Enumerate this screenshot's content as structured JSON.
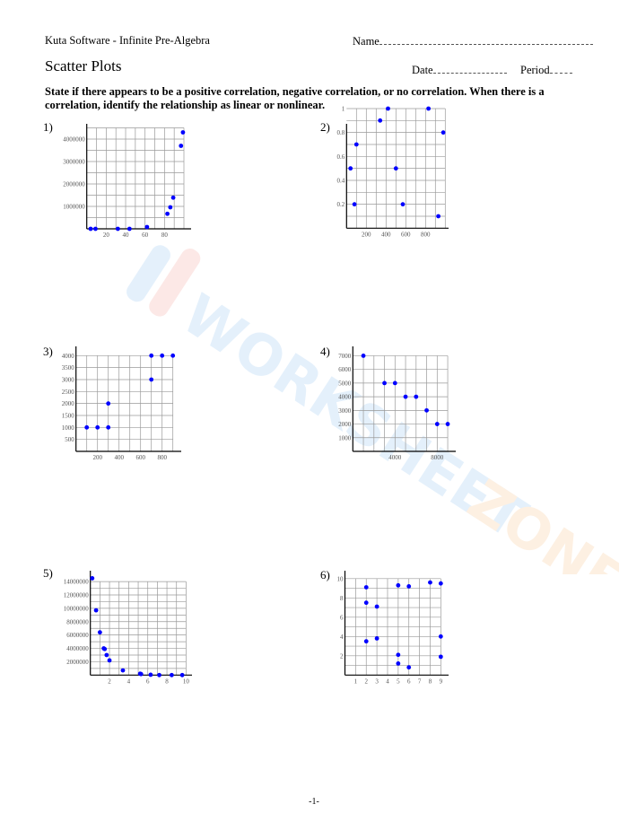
{
  "header": {
    "publisher": "Kuta Software - Infinite Pre-Algebra",
    "name_label": "Name",
    "title": "Scatter Plots",
    "date_label": "Date",
    "period_label": "Period"
  },
  "instructions": "State if there appears to be a positive correlation, negative correlation, or no correlation.  When there is a correlation, identify the relationship as linear or nonlinear.",
  "watermark": "WORKSHEETZONE",
  "footer": "-1-",
  "colors": {
    "points": "#0000ff",
    "grid": "#9a9a9a",
    "axis": "#000000",
    "tick_text": "#555555"
  },
  "chart_data": [
    {
      "label": "1)",
      "type": "scatter",
      "grid": true,
      "xlim": [
        0,
        100
      ],
      "ylim": [
        0,
        4500000
      ],
      "xticks": [
        "20",
        "40",
        "60",
        "80"
      ],
      "xtick_values": [
        20,
        40,
        60,
        80
      ],
      "yticks": [
        "1000000",
        "2000000",
        "3000000",
        "4000000"
      ],
      "ytick_values": [
        1000000,
        2000000,
        3000000,
        4000000
      ],
      "xgrid_step": 10,
      "ygrid_step": 500000,
      "points": [
        [
          4,
          0
        ],
        [
          9,
          0
        ],
        [
          32,
          0
        ],
        [
          44,
          0
        ],
        [
          62,
          80000
        ],
        [
          83,
          670000
        ],
        [
          86,
          960000
        ],
        [
          89,
          1390000
        ],
        [
          97,
          3700000
        ],
        [
          99,
          4300000
        ]
      ]
    },
    {
      "label": "2)",
      "type": "scatter",
      "grid": true,
      "xlim": [
        0,
        1000
      ],
      "ylim": [
        0,
        1
      ],
      "xticks": [
        "200",
        "400",
        "600",
        "800"
      ],
      "xtick_values": [
        200,
        400,
        600,
        800
      ],
      "yticks": [
        "0.2",
        "0.4",
        "0.6",
        "0.8",
        "1"
      ],
      "ytick_values": [
        0.2,
        0.4,
        0.6,
        0.8,
        1
      ],
      "xgrid_step": 100,
      "ygrid_step": 0.1,
      "points": [
        [
          40,
          0.5
        ],
        [
          80,
          0.2
        ],
        [
          100,
          0.7
        ],
        [
          340,
          0.9
        ],
        [
          420,
          1
        ],
        [
          500,
          0.5
        ],
        [
          570,
          0.2
        ],
        [
          830,
          1
        ],
        [
          930,
          0.1
        ],
        [
          980,
          0.8
        ]
      ]
    },
    {
      "label": "3)",
      "type": "scatter",
      "grid": true,
      "xlim": [
        0,
        900
      ],
      "ylim": [
        0,
        4000
      ],
      "xticks": [
        "200",
        "400",
        "600",
        "800"
      ],
      "xtick_values": [
        200,
        400,
        600,
        800
      ],
      "yticks": [
        "500",
        "1000",
        "1500",
        "2000",
        "2500",
        "3000",
        "3500",
        "4000"
      ],
      "ytick_values": [
        500,
        1000,
        1500,
        2000,
        2500,
        3000,
        3500,
        4000
      ],
      "xgrid_step": 100,
      "ygrid_step": 500,
      "points": [
        [
          100,
          1000
        ],
        [
          200,
          1000
        ],
        [
          300,
          1000
        ],
        [
          300,
          2000
        ],
        [
          700,
          3000
        ],
        [
          700,
          4000
        ],
        [
          800,
          4000
        ],
        [
          900,
          4000
        ]
      ]
    },
    {
      "label": "4)",
      "type": "scatter",
      "grid": true,
      "xlim": [
        0,
        9000
      ],
      "ylim": [
        0,
        7000
      ],
      "xticks": [
        "4000",
        "8000"
      ],
      "xtick_values": [
        4000,
        8000
      ],
      "yticks": [
        "1000",
        "2000",
        "3000",
        "4000",
        "5000",
        "6000",
        "7000"
      ],
      "ytick_values": [
        1000,
        2000,
        3000,
        4000,
        5000,
        6000,
        7000
      ],
      "xgrid_step": 1000,
      "ygrid_step": 1000,
      "points": [
        [
          1000,
          7000
        ],
        [
          3000,
          5000
        ],
        [
          4000,
          5000
        ],
        [
          5000,
          4000
        ],
        [
          6000,
          4000
        ],
        [
          7000,
          3000
        ],
        [
          8000,
          2000
        ],
        [
          9000,
          2000
        ]
      ]
    },
    {
      "label": "5)",
      "type": "scatter",
      "grid": true,
      "xlim": [
        0,
        10
      ],
      "ylim": [
        0,
        14000000
      ],
      "xticks": [
        "2",
        "4",
        "6",
        "8",
        "10"
      ],
      "xtick_values": [
        2,
        4,
        6,
        8,
        10
      ],
      "yticks": [
        "2000000",
        "4000000",
        "6000000",
        "8000000",
        "10000000",
        "12000000",
        "14000000"
      ],
      "ytick_values": [
        2000000,
        4000000,
        6000000,
        8000000,
        10000000,
        12000000,
        14000000
      ],
      "xgrid_step": 1,
      "ygrid_step": 1000000,
      "points": [
        [
          0.2,
          14500000
        ],
        [
          0.6,
          9700000
        ],
        [
          1.0,
          6400000
        ],
        [
          1.4,
          4000000
        ],
        [
          1.5,
          3900000
        ],
        [
          1.7,
          3000000
        ],
        [
          2.0,
          2200000
        ],
        [
          3.4,
          700000
        ],
        [
          5.2,
          200000
        ],
        [
          5.3,
          150000
        ],
        [
          6.3,
          50000
        ],
        [
          7.2,
          0
        ],
        [
          8.5,
          0
        ],
        [
          9.6,
          0
        ]
      ]
    },
    {
      "label": "6)",
      "type": "scatter",
      "grid": true,
      "xlim": [
        0,
        9
      ],
      "ylim": [
        0,
        10
      ],
      "xticks": [
        "1",
        "2",
        "3",
        "4",
        "5",
        "6",
        "7",
        "8",
        "9"
      ],
      "xtick_values": [
        1,
        2,
        3,
        4,
        5,
        6,
        7,
        8,
        9
      ],
      "yticks": [
        "2",
        "4",
        "6",
        "8",
        "10"
      ],
      "ytick_values": [
        2,
        4,
        6,
        8,
        10
      ],
      "xgrid_step": 1,
      "ygrid_step": 1,
      "points": [
        [
          2,
          9.1
        ],
        [
          2,
          7.5
        ],
        [
          2,
          3.5
        ],
        [
          3,
          7.1
        ],
        [
          3,
          3.8
        ],
        [
          5,
          9.3
        ],
        [
          5,
          2.1
        ],
        [
          5,
          1.2
        ],
        [
          6,
          9.2
        ],
        [
          6,
          0.8
        ],
        [
          8,
          9.6
        ],
        [
          9,
          9.5
        ],
        [
          9,
          4.0
        ],
        [
          9,
          1.9
        ]
      ]
    }
  ]
}
